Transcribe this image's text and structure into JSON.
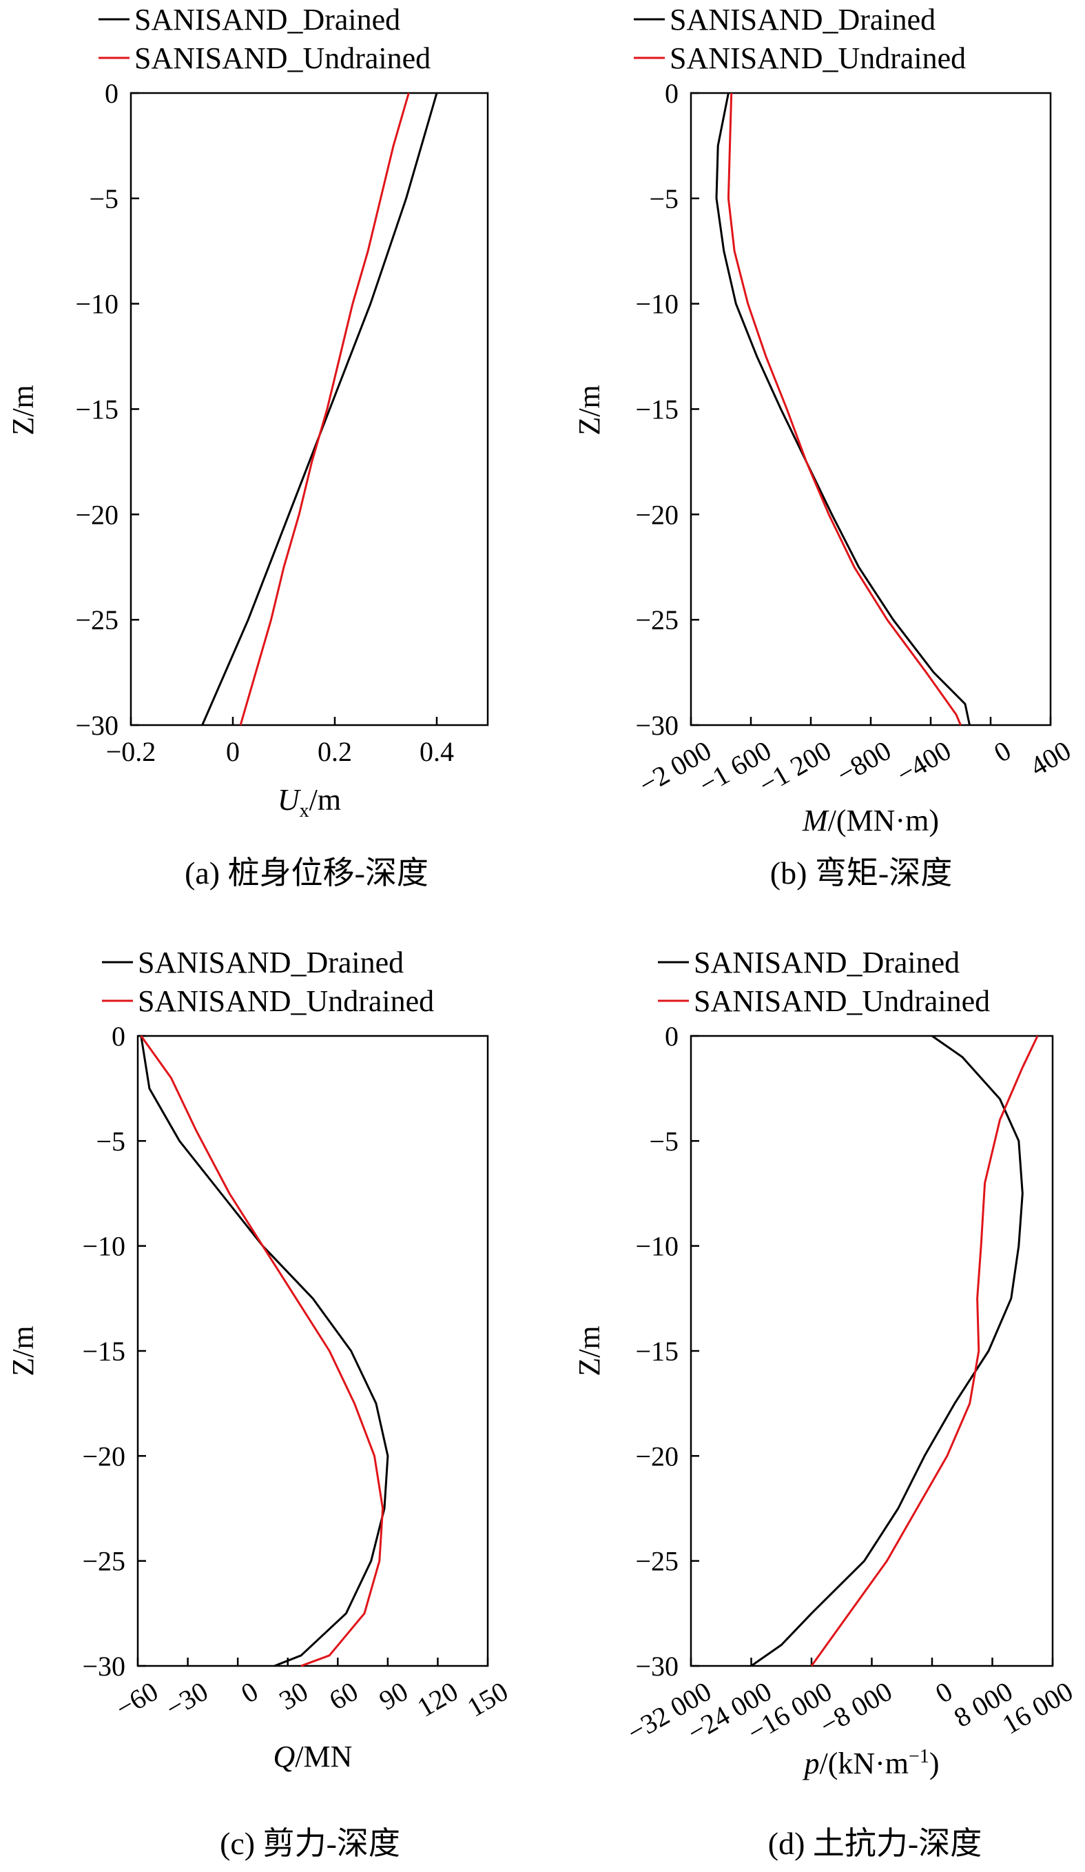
{
  "chart_data": [
    {
      "type": "line",
      "caption": "(a) 桩身位移-深度",
      "xlabel_prefix": "U",
      "xlabel_sub": "x",
      "xlabel_rest": "/m",
      "ylabel": "Z/m",
      "xlim": [
        -0.2,
        0.5
      ],
      "ylim": [
        -30,
        0
      ],
      "xticks": [
        -0.2,
        0,
        0.2,
        0.4
      ],
      "xtick_labels": [
        "−0.2",
        "0",
        "0.2",
        "0.4"
      ],
      "yticks": [
        0,
        -5,
        -10,
        -15,
        -20,
        -25,
        -30
      ],
      "ytick_labels": [
        "0",
        "−5",
        "−10",
        "−15",
        "−20",
        "−25",
        "−30"
      ],
      "xtick_rotated": false,
      "legend_position": "top",
      "series": [
        {
          "name": "SANISAND_Drained",
          "color": "#000000",
          "points": [
            [
              0.4,
              0
            ],
            [
              0.37,
              -2.5
            ],
            [
              0.34,
              -5
            ],
            [
              0.305,
              -7.5
            ],
            [
              0.27,
              -10
            ],
            [
              0.23,
              -12.5
            ],
            [
              0.19,
              -15
            ],
            [
              0.15,
              -17.5
            ],
            [
              0.11,
              -20
            ],
            [
              0.07,
              -22.5
            ],
            [
              0.03,
              -25
            ],
            [
              -0.015,
              -27.5
            ],
            [
              -0.06,
              -30
            ]
          ]
        },
        {
          "name": "SANISAND_Undrained",
          "color": "#e0151a",
          "points": [
            [
              0.345,
              0
            ],
            [
              0.315,
              -2.5
            ],
            [
              0.29,
              -5
            ],
            [
              0.265,
              -7.5
            ],
            [
              0.235,
              -10
            ],
            [
              0.21,
              -12.5
            ],
            [
              0.185,
              -15
            ],
            [
              0.155,
              -17.5
            ],
            [
              0.13,
              -20
            ],
            [
              0.1,
              -22.5
            ],
            [
              0.075,
              -25
            ],
            [
              0.045,
              -27.5
            ],
            [
              0.015,
              -30
            ]
          ]
        }
      ]
    },
    {
      "type": "line",
      "caption": "(b) 弯矩-深度",
      "xlabel_prefix": "M",
      "xlabel_sub": "",
      "xlabel_rest": "/(MN·m)",
      "ylabel": "Z/m",
      "xlim": [
        -2000,
        400
      ],
      "ylim": [
        -30,
        0
      ],
      "xticks": [
        -2000,
        -1600,
        -1200,
        -800,
        -400,
        0,
        400
      ],
      "xtick_labels": [
        "−2 000",
        "−1 600",
        "−1 200",
        "−800",
        "−400",
        "0",
        "400"
      ],
      "yticks": [
        0,
        -5,
        -10,
        -15,
        -20,
        -25,
        -30
      ],
      "ytick_labels": [
        "0",
        "−5",
        "−10",
        "−15",
        "−20",
        "−25",
        "−30"
      ],
      "xtick_rotated": true,
      "legend_position": "top",
      "series": [
        {
          "name": "SANISAND_Drained",
          "color": "#000000",
          "points": [
            [
              -1750,
              0
            ],
            [
              -1820,
              -2.5
            ],
            [
              -1830,
              -5
            ],
            [
              -1780,
              -7.5
            ],
            [
              -1700,
              -10
            ],
            [
              -1560,
              -12.5
            ],
            [
              -1400,
              -15
            ],
            [
              -1230,
              -17.5
            ],
            [
              -1060,
              -20
            ],
            [
              -880,
              -22.5
            ],
            [
              -650,
              -25
            ],
            [
              -380,
              -27.5
            ],
            [
              -170,
              -29
            ],
            [
              -140,
              -30
            ]
          ]
        },
        {
          "name": "SANISAND_Undrained",
          "color": "#e0151a",
          "points": [
            [
              -1730,
              0
            ],
            [
              -1740,
              -2.5
            ],
            [
              -1750,
              -5
            ],
            [
              -1710,
              -7.5
            ],
            [
              -1620,
              -10
            ],
            [
              -1500,
              -12.5
            ],
            [
              -1360,
              -15
            ],
            [
              -1230,
              -17.5
            ],
            [
              -1080,
              -20
            ],
            [
              -910,
              -22.5
            ],
            [
              -690,
              -25
            ],
            [
              -430,
              -27.5
            ],
            [
              -230,
              -29.5
            ],
            [
              -200,
              -30
            ]
          ]
        }
      ]
    },
    {
      "type": "line",
      "caption": "(c) 剪力-深度",
      "xlabel_prefix": "Q",
      "xlabel_sub": "",
      "xlabel_rest": "/MN",
      "ylabel": "Z/m",
      "xlim": [
        -60,
        150
      ],
      "ylim": [
        -30,
        0
      ],
      "xticks": [
        -60,
        -30,
        0,
        30,
        60,
        90,
        120,
        150
      ],
      "xtick_labels": [
        "−60",
        "−30",
        "0",
        "30",
        "60",
        "90",
        "120",
        "150"
      ],
      "yticks": [
        0,
        -5,
        -10,
        -15,
        -20,
        -25,
        -30
      ],
      "ytick_labels": [
        "0",
        "−5",
        "−10",
        "−15",
        "−20",
        "−25",
        "−30"
      ],
      "xtick_rotated": true,
      "legend_position": "top",
      "series": [
        {
          "name": "SANISAND_Drained",
          "color": "#000000",
          "points": [
            [
              -58,
              0
            ],
            [
              -53,
              -2.5
            ],
            [
              -35,
              -5
            ],
            [
              -10,
              -7.5
            ],
            [
              15,
              -10
            ],
            [
              45,
              -12.5
            ],
            [
              68,
              -15
            ],
            [
              83,
              -17.5
            ],
            [
              90,
              -20
            ],
            [
              88,
              -22.5
            ],
            [
              80,
              -25
            ],
            [
              65,
              -27.5
            ],
            [
              38,
              -29.5
            ],
            [
              22,
              -30
            ]
          ]
        },
        {
          "name": "SANISAND_Undrained",
          "color": "#e0151a",
          "points": [
            [
              -58,
              0
            ],
            [
              -40,
              -2
            ],
            [
              -25,
              -4.5
            ],
            [
              -5,
              -7.5
            ],
            [
              15,
              -10
            ],
            [
              35,
              -12.5
            ],
            [
              55,
              -15
            ],
            [
              70,
              -17.5
            ],
            [
              82,
              -20
            ],
            [
              87,
              -22.5
            ],
            [
              85,
              -25
            ],
            [
              76,
              -27.5
            ],
            [
              55,
              -29.5
            ],
            [
              38,
              -30
            ]
          ]
        }
      ]
    },
    {
      "type": "line",
      "caption": "(d) 土抗力-深度",
      "xlabel_prefix": "p",
      "xlabel_sub": "",
      "xlabel_rest": "/(kN·m",
      "xlabel_sup": "−1",
      "xlabel_tail": ")",
      "ylabel": "Z/m",
      "xlim": [
        -32000,
        16000
      ],
      "ylim": [
        -30,
        0
      ],
      "xticks": [
        -32000,
        -24000,
        -16000,
        -8000,
        0,
        8000,
        16000
      ],
      "xtick_labels": [
        "−32 000",
        "−24 000",
        "−16 000",
        "−8 000",
        "0",
        "8 000",
        "16 000"
      ],
      "yticks": [
        0,
        -5,
        -10,
        -15,
        -20,
        -25,
        -30
      ],
      "ytick_labels": [
        "0",
        "−5",
        "−10",
        "−15",
        "−20",
        "−25",
        "−30"
      ],
      "xtick_rotated": true,
      "legend_position": "top",
      "series": [
        {
          "name": "SANISAND_Drained",
          "color": "#000000",
          "points": [
            [
              0,
              0
            ],
            [
              4000,
              -1
            ],
            [
              9000,
              -3
            ],
            [
              11500,
              -5
            ],
            [
              12000,
              -7.5
            ],
            [
              11500,
              -10
            ],
            [
              10500,
              -12.5
            ],
            [
              7500,
              -15
            ],
            [
              3000,
              -17.5
            ],
            [
              -1000,
              -20
            ],
            [
              -4500,
              -22.5
            ],
            [
              -9000,
              -25
            ],
            [
              -16000,
              -27.5
            ],
            [
              -20000,
              -29
            ],
            [
              -24000,
              -30
            ]
          ]
        },
        {
          "name": "SANISAND_Undrained",
          "color": "#e0151a",
          "points": [
            [
              14000,
              0
            ],
            [
              12000,
              -1.5
            ],
            [
              9000,
              -4
            ],
            [
              7000,
              -7
            ],
            [
              6500,
              -10
            ],
            [
              6000,
              -12.5
            ],
            [
              6200,
              -15
            ],
            [
              5000,
              -17.5
            ],
            [
              2000,
              -20
            ],
            [
              -2000,
              -22.5
            ],
            [
              -6000,
              -25
            ],
            [
              -11000,
              -27.5
            ],
            [
              -15000,
              -29.5
            ],
            [
              -16000,
              -30
            ]
          ]
        }
      ]
    }
  ]
}
